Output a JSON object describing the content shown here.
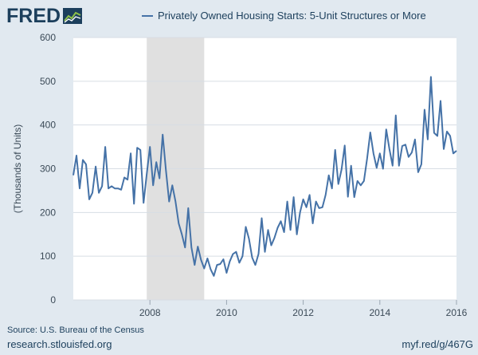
{
  "header": {
    "logo_text": "FRED",
    "legend_label": "Privately Owned Housing Starts: 5-Unit Structures or More"
  },
  "footer": {
    "source": "Source: U.S. Bureau of the Census",
    "url": "research.stlouisfed.org",
    "short_url": "myf.red/g/467G"
  },
  "colors": {
    "line": "#4572a7",
    "recession": "#e0e0e0",
    "grid": "#d7dde4",
    "plot_bg": "#ffffff",
    "page_bg": "#e1e9f0"
  },
  "chart_data": {
    "type": "line",
    "title": "Privately Owned Housing Starts: 5-Unit Structures or More",
    "xlabel": "",
    "ylabel": "(Thousands of Units)",
    "xlim": [
      2006.0,
      2016.0
    ],
    "ylim": [
      0,
      600
    ],
    "x_ticks": [
      2008,
      2010,
      2012,
      2014,
      2016
    ],
    "x_tick_labels": [
      "2008",
      "2010",
      "2012",
      "2014",
      "2016"
    ],
    "y_ticks": [
      0,
      100,
      200,
      300,
      400,
      500,
      600
    ],
    "y_tick_labels": [
      "0",
      "100",
      "200",
      "300",
      "400",
      "500",
      "600"
    ],
    "grid": true,
    "legend_position": "top",
    "recession_shading": [
      {
        "start": 2007.917,
        "end": 2009.417
      }
    ],
    "series": [
      {
        "name": "Privately Owned Housing Starts: 5-Unit Structures or More",
        "start_year": 2006.0,
        "frequency": "monthly",
        "values": [
          285,
          330,
          255,
          320,
          310,
          230,
          245,
          305,
          245,
          260,
          350,
          255,
          260,
          255,
          255,
          252,
          280,
          275,
          335,
          220,
          348,
          343,
          222,
          288,
          350,
          262,
          315,
          278,
          378,
          298,
          225,
          262,
          225,
          175,
          150,
          120,
          210,
          120,
          80,
          122,
          92,
          72,
          95,
          70,
          55,
          80,
          82,
          93,
          62,
          88,
          105,
          110,
          85,
          100,
          167,
          140,
          97,
          80,
          105,
          187,
          110,
          160,
          125,
          142,
          165,
          180,
          155,
          225,
          160,
          235,
          150,
          200,
          230,
          212,
          240,
          175,
          225,
          210,
          212,
          240,
          285,
          255,
          343,
          265,
          298,
          353,
          236,
          307,
          235,
          272,
          262,
          272,
          323,
          383,
          335,
          302,
          335,
          300,
          390,
          345,
          307,
          422,
          307,
          352,
          355,
          327,
          337,
          367,
          292,
          310,
          435,
          367,
          510,
          382,
          375,
          455,
          345,
          385,
          375,
          335,
          341
        ]
      }
    ]
  }
}
